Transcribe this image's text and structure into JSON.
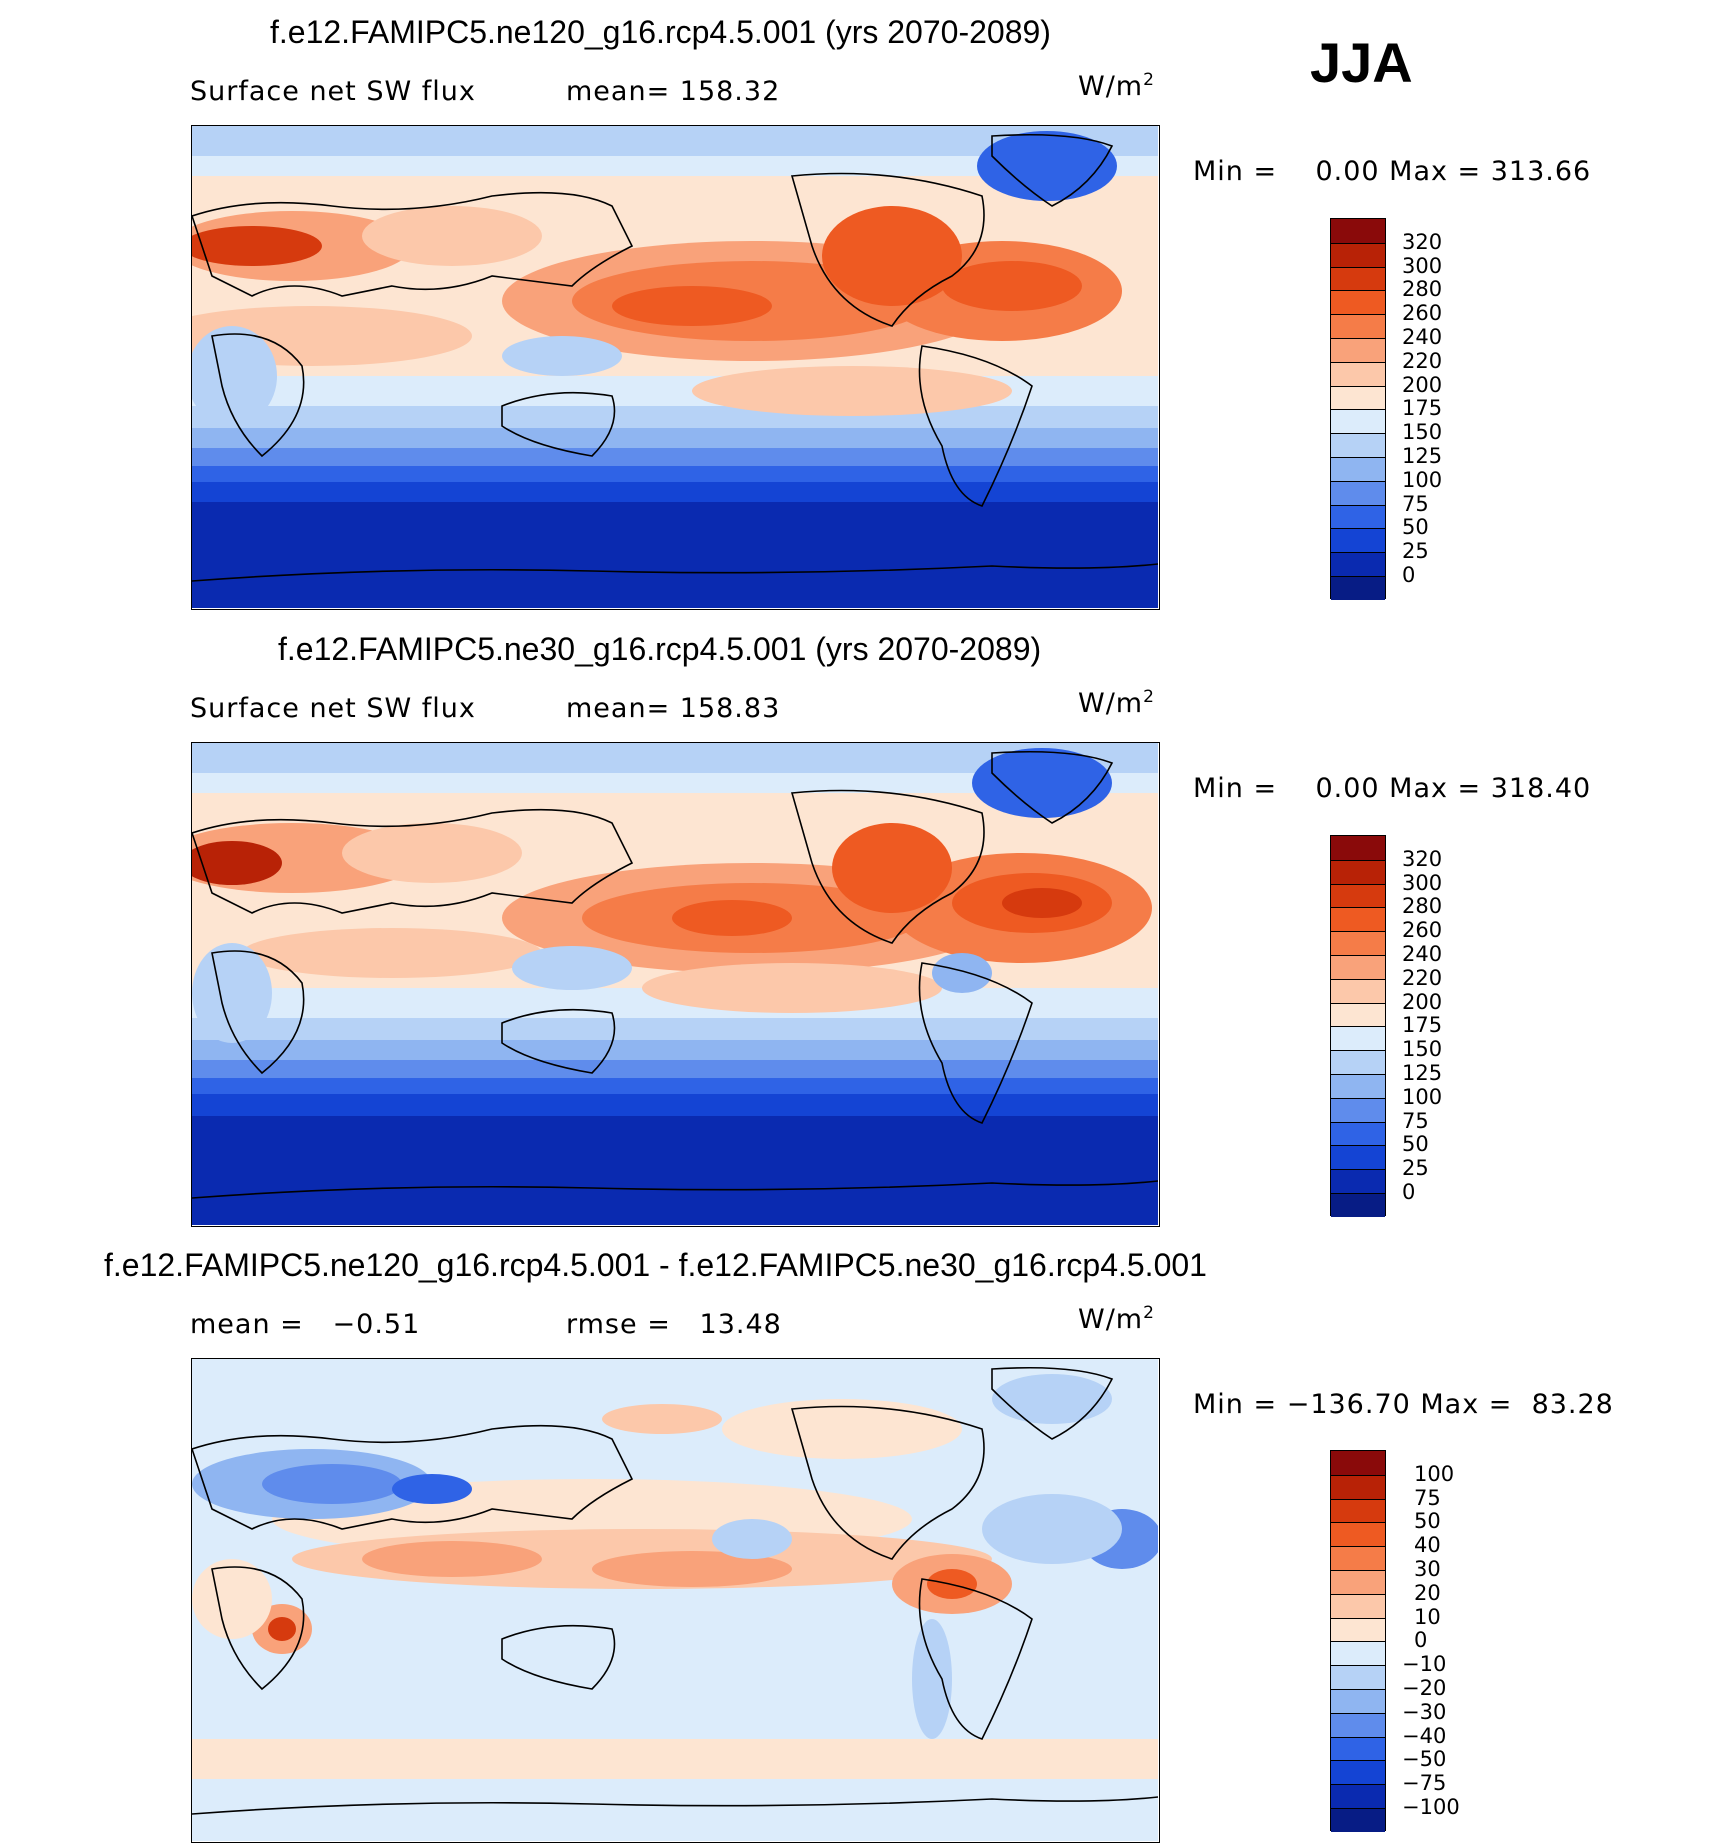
{
  "season": "JJA",
  "panels": [
    {
      "title": "f.e12.FAMIPC5.ne120_g16.rcp4.5.001 (yrs 2070-2089)",
      "variable": "Surface net SW flux",
      "stat1": "mean= 158.32",
      "stat2": "",
      "units": "W/m",
      "units_sup": "2",
      "minmax": "Min =    0.00 Max = 313.66",
      "levels": [
        "320",
        "300",
        "280",
        "260",
        "240",
        "220",
        "200",
        "175",
        "150",
        "125",
        "100",
        "75",
        "50",
        "25",
        "0"
      ],
      "colors": [
        "#8a0a0a",
        "#b82206",
        "#d63a0e",
        "#ee5a22",
        "#f57c48",
        "#f9a27a",
        "#fcc8aa",
        "#fde5d2",
        "#dcecfb",
        "#b6d2f6",
        "#8fb5f1",
        "#5f8cec",
        "#2f63e6",
        "#1444d4",
        "#0a2ab0",
        "#071c85"
      ]
    },
    {
      "title": "f.e12.FAMIPC5.ne30_g16.rcp4.5.001 (yrs 2070-2089)",
      "variable": "Surface net SW flux",
      "stat1": "mean= 158.83",
      "stat2": "",
      "units": "W/m",
      "units_sup": "2",
      "minmax": "Min =    0.00 Max = 318.40",
      "levels": [
        "320",
        "300",
        "280",
        "260",
        "240",
        "220",
        "200",
        "175",
        "150",
        "125",
        "100",
        "75",
        "50",
        "25",
        "0"
      ],
      "colors": [
        "#8a0a0a",
        "#b82206",
        "#d63a0e",
        "#ee5a22",
        "#f57c48",
        "#f9a27a",
        "#fcc8aa",
        "#fde5d2",
        "#dcecfb",
        "#b6d2f6",
        "#8fb5f1",
        "#5f8cec",
        "#2f63e6",
        "#1444d4",
        "#0a2ab0",
        "#071c85"
      ]
    },
    {
      "title": "f.e12.FAMIPC5.ne120_g16.rcp4.5.001 - f.e12.FAMIPC5.ne30_g16.rcp4.5.001",
      "variable": "mean =   −0.51",
      "stat1": "rmse =   13.48",
      "stat2": "",
      "units": "W/m",
      "units_sup": "2",
      "minmax": "Min = −136.70 Max =  83.28",
      "levels": [
        "100",
        "75",
        "50",
        "40",
        "30",
        "20",
        "10",
        "0",
        "−10",
        "−20",
        "−30",
        "−40",
        "−50",
        "−75",
        "−100"
      ],
      "colors": [
        "#8a0a0a",
        "#b82206",
        "#d63a0e",
        "#ee5a22",
        "#f57c48",
        "#f9a27a",
        "#fcc8aa",
        "#fde5d2",
        "#dcecfb",
        "#b6d2f6",
        "#8fb5f1",
        "#5f8cec",
        "#2f63e6",
        "#1444d4",
        "#0a2ab0",
        "#071c85"
      ]
    }
  ]
}
